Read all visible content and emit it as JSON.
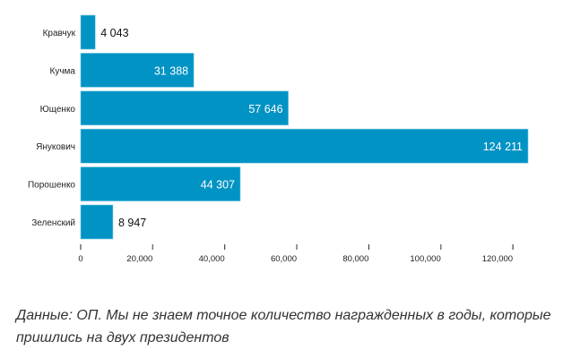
{
  "chart_data": {
    "type": "bar",
    "orientation": "horizontal",
    "categories": [
      "Кравчук",
      "Кучма",
      "Ющенко",
      "Янукович",
      "Порошенко",
      "Зеленский"
    ],
    "values": [
      4043,
      31388,
      57646,
      124211,
      44307,
      8947
    ],
    "value_labels": [
      "4 043",
      "31 388",
      "57 646",
      "124 211",
      "44 307",
      "8 947"
    ],
    "xticks": [
      0,
      20000,
      40000,
      60000,
      80000,
      100000,
      120000
    ],
    "xtick_labels": [
      "0",
      "20,000",
      "40,000",
      "60,000",
      "80,000",
      "100,000",
      "120,000"
    ],
    "xlim": [
      0,
      124211
    ],
    "grid": false,
    "bar_color": "#0093c4",
    "title": "",
    "xlabel": "",
    "ylabel": ""
  },
  "caption": "Данные: ОП. Мы не знаем точное количество награжденных в годы, которые пришлись на двух президентов"
}
